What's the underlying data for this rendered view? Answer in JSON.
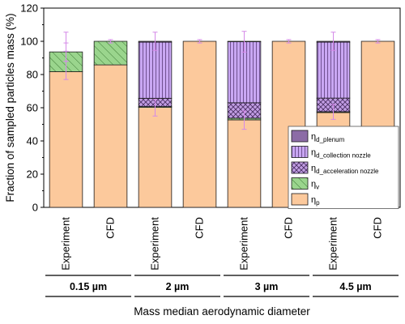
{
  "chart_data": {
    "type": "bar",
    "stacked": true,
    "ylabel": "Fraction of sampled particles mass (%)",
    "xlabel": "Mass median aerodynamic diameter",
    "ylim": [
      0,
      120
    ],
    "yticks": [
      "0",
      "20",
      "40",
      "60",
      "80",
      "100",
      "120"
    ],
    "categories": [
      "Experiment",
      "CFD",
      "Experiment",
      "CFD",
      "Experiment",
      "CFD",
      "Experiment",
      "CFD"
    ],
    "groups": [
      {
        "label": "0.15 µm",
        "span": [
          0,
          1
        ]
      },
      {
        "label": "2 µm",
        "span": [
          2,
          3
        ]
      },
      {
        "label": "3 µm",
        "span": [
          4,
          5
        ]
      },
      {
        "label": "4.5 µm",
        "span": [
          6,
          7
        ]
      }
    ],
    "series": [
      {
        "key": "p",
        "symbol": "η",
        "sub": "p",
        "color": "#fcc99c",
        "pattern": "solid",
        "values": [
          81.7,
          85.8,
          60.2,
          100,
          52.7,
          100,
          57.1,
          100
        ]
      },
      {
        "key": "v",
        "symbol": "η",
        "sub": "v",
        "color": "#9ad58d",
        "pattern": "diag",
        "values": [
          11.9,
          14.2,
          0.5,
          0,
          1,
          0,
          0.5,
          0
        ]
      },
      {
        "key": "acc",
        "symbol": "η",
        "sub": "d_acceleration nozzle",
        "color": "#c29ee4",
        "pattern": "cross",
        "values": [
          0,
          0,
          5,
          0,
          9.3,
          0,
          8.2,
          0
        ]
      },
      {
        "key": "coll",
        "symbol": "η",
        "sub": "d_collection nozzle",
        "color": "#c9a7f3",
        "pattern": "vert",
        "values": [
          0,
          0,
          33.8,
          0,
          36.8,
          0,
          33.7,
          0
        ]
      },
      {
        "key": "plen",
        "symbol": "η",
        "sub": "d_plenum",
        "color": "#8c6ca6",
        "pattern": "solid",
        "values": [
          0,
          0,
          0.5,
          0,
          0.2,
          0,
          0.5,
          0
        ]
      }
    ],
    "error_bars": [
      {
        "bar": 0,
        "center": 81.7,
        "low": 77,
        "high": 88
      },
      {
        "bar": 0,
        "center": 93.6,
        "low": 88,
        "high": 99
      },
      {
        "bar": 0,
        "center": 100,
        "low": 94,
        "high": 105.5
      },
      {
        "bar": 1,
        "center": 100,
        "low": 99,
        "high": 101
      },
      {
        "bar": 2,
        "center": 100,
        "low": 94.5,
        "high": 105.5
      },
      {
        "bar": 2,
        "center": 60.2,
        "low": 55,
        "high": 65
      },
      {
        "bar": 3,
        "center": 100,
        "low": 99,
        "high": 101
      },
      {
        "bar": 4,
        "center": 100,
        "low": 93.5,
        "high": 106
      },
      {
        "bar": 4,
        "center": 52.7,
        "low": 47,
        "high": 58
      },
      {
        "bar": 5,
        "center": 100,
        "low": 99,
        "high": 101
      },
      {
        "bar": 6,
        "center": 100,
        "low": 94.5,
        "high": 105.5
      },
      {
        "bar": 6,
        "center": 57.1,
        "low": 53,
        "high": 62
      },
      {
        "bar": 7,
        "center": 100,
        "low": 99,
        "high": 101
      }
    ],
    "legend": {
      "placement": "lower-right",
      "order": [
        "plen",
        "coll",
        "acc",
        "v",
        "p"
      ]
    },
    "error_color": "#d58ae8"
  }
}
